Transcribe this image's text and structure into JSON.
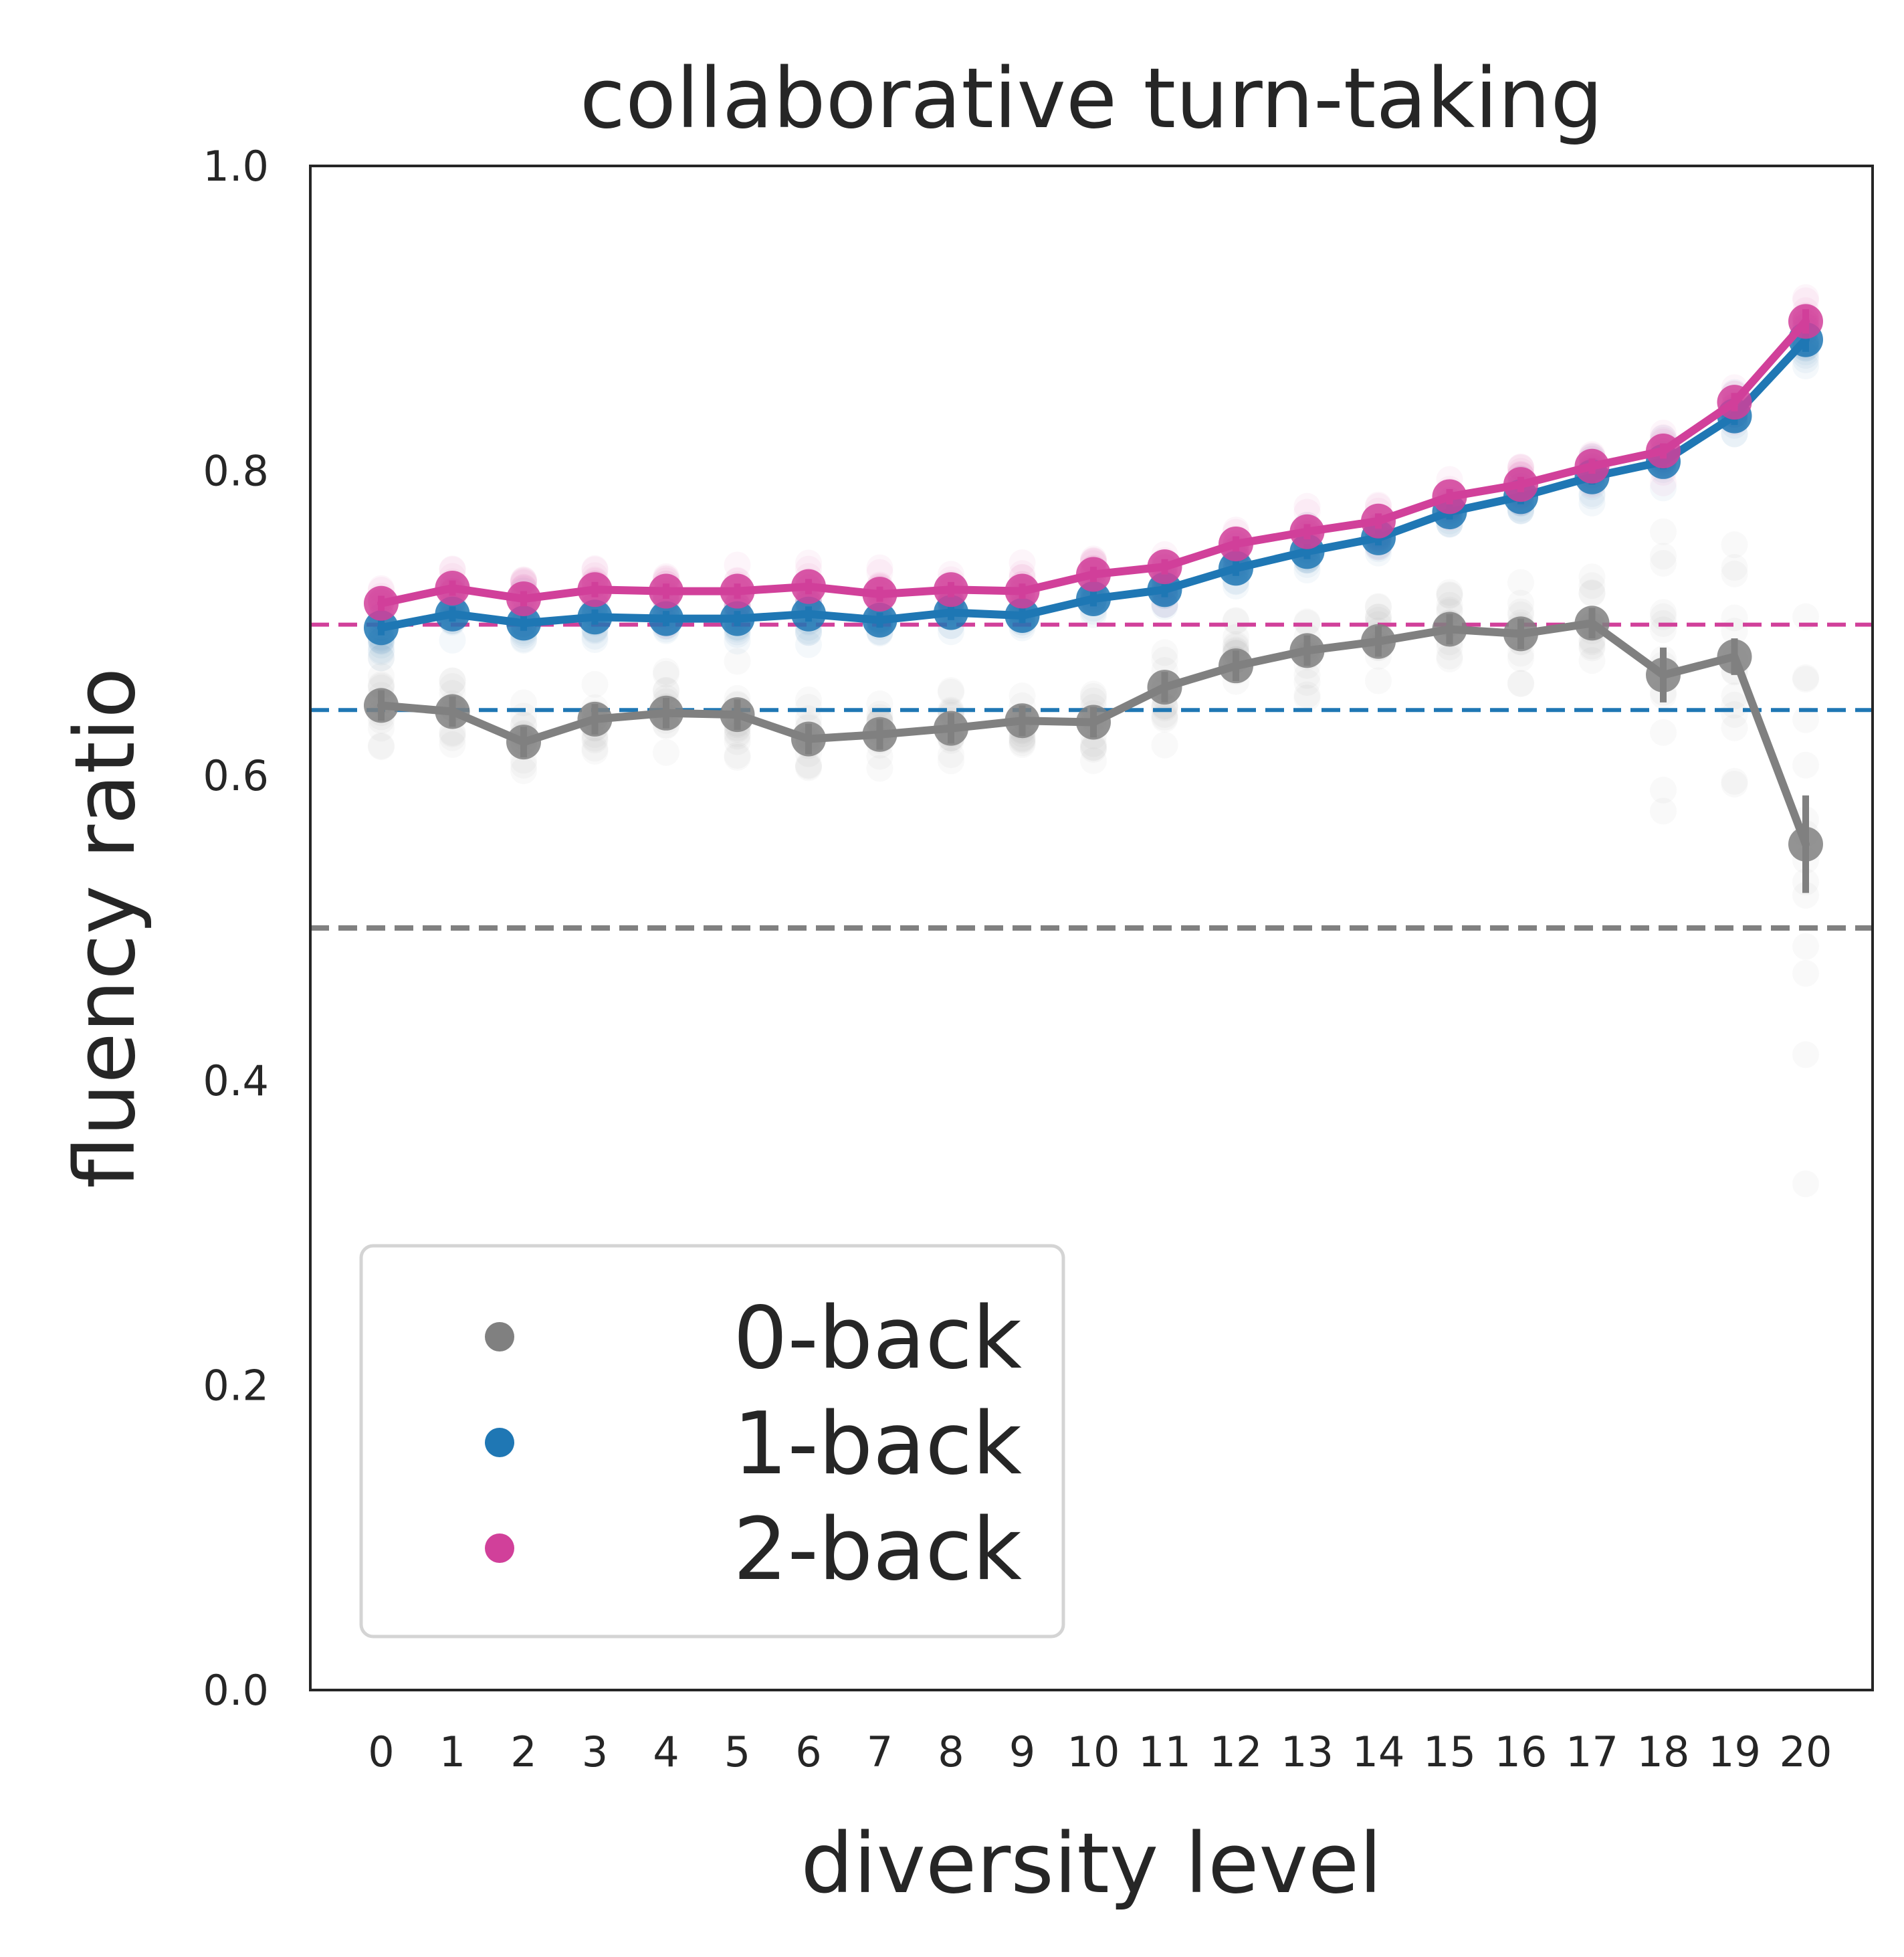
{
  "chart_data": {
    "type": "line",
    "title": "collaborative turn-taking",
    "xlabel": "diversity level",
    "ylabel": "fluency ratio",
    "categories": [
      "0",
      "1",
      "2",
      "3",
      "4",
      "5",
      "6",
      "7",
      "8",
      "9",
      "10",
      "11",
      "12",
      "13",
      "14",
      "15",
      "16",
      "17",
      "18",
      "19",
      "20"
    ],
    "ylim": [
      0.0,
      1.0
    ],
    "yticks": [
      "0.0",
      "0.2",
      "0.4",
      "0.6",
      "0.8",
      "1.0"
    ],
    "grid": false,
    "legend_position": "lower-left",
    "series": [
      {
        "name": "0-back",
        "color": "#808080",
        "values": [
          0.646,
          0.642,
          0.622,
          0.637,
          0.641,
          0.64,
          0.624,
          0.627,
          0.631,
          0.636,
          0.635,
          0.658,
          0.672,
          0.682,
          0.688,
          0.696,
          0.693,
          0.7,
          0.666,
          0.678,
          0.555
        ],
        "error": [
          0.01,
          0.01,
          0.01,
          0.01,
          0.01,
          0.01,
          0.01,
          0.01,
          0.01,
          0.01,
          0.01,
          0.01,
          0.01,
          0.01,
          0.01,
          0.01,
          0.01,
          0.01,
          0.018,
          0.012,
          0.032
        ]
      },
      {
        "name": "1-back",
        "color": "#1f77b4",
        "values": [
          0.697,
          0.706,
          0.7,
          0.704,
          0.703,
          0.703,
          0.706,
          0.702,
          0.707,
          0.705,
          0.716,
          0.722,
          0.736,
          0.747,
          0.756,
          0.773,
          0.783,
          0.796,
          0.806,
          0.836,
          0.886
        ],
        "error": [
          0.005,
          0.005,
          0.005,
          0.005,
          0.005,
          0.005,
          0.005,
          0.005,
          0.005,
          0.005,
          0.005,
          0.005,
          0.005,
          0.005,
          0.005,
          0.005,
          0.005,
          0.005,
          0.005,
          0.006,
          0.008
        ]
      },
      {
        "name": "2-back",
        "color": "#d1409a",
        "values": [
          0.713,
          0.723,
          0.716,
          0.722,
          0.721,
          0.721,
          0.724,
          0.719,
          0.722,
          0.721,
          0.732,
          0.737,
          0.752,
          0.76,
          0.767,
          0.783,
          0.791,
          0.803,
          0.813,
          0.845,
          0.898
        ],
        "error": [
          0.005,
          0.005,
          0.005,
          0.005,
          0.005,
          0.005,
          0.005,
          0.005,
          0.005,
          0.005,
          0.005,
          0.005,
          0.005,
          0.005,
          0.005,
          0.005,
          0.005,
          0.005,
          0.005,
          0.006,
          0.008
        ]
      }
    ],
    "reference_lines": [
      {
        "series": "0-back",
        "y": 0.5,
        "color": "#808080"
      },
      {
        "series": "1-back",
        "y": 0.643,
        "color": "#1f77b4"
      },
      {
        "series": "2-back",
        "y": 0.699,
        "color": "#d1409a"
      }
    ]
  }
}
